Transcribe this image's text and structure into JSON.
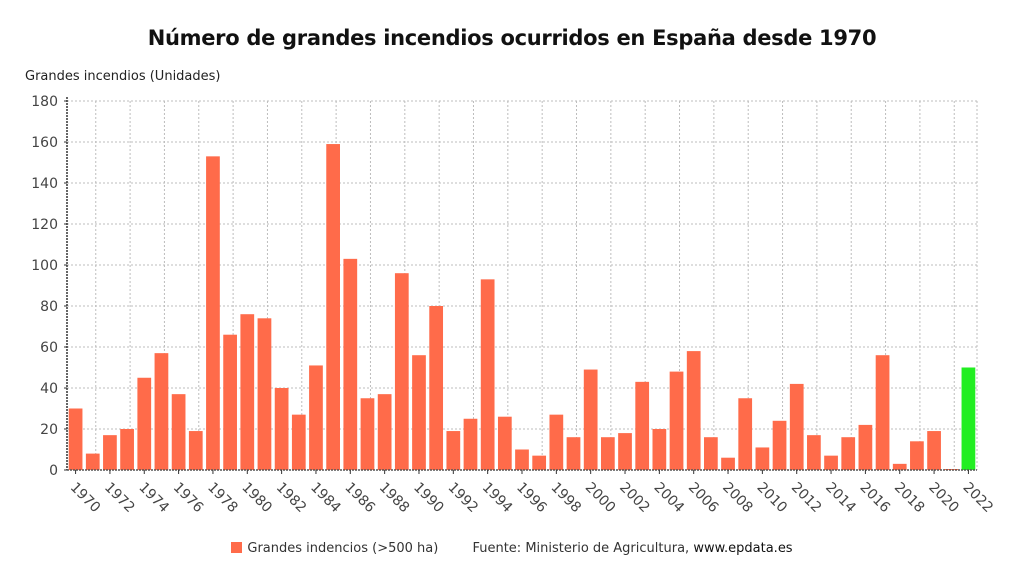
{
  "chart_data": {
    "type": "bar",
    "title": "Número de grandes incendios ocurridos en España desde 1970",
    "ylabel": "Grandes incendios (Unidades)",
    "xlabel": "",
    "ylim": [
      0,
      180
    ],
    "yticks": [
      0,
      20,
      40,
      60,
      80,
      100,
      120,
      140,
      160,
      180
    ],
    "xtick_labels": [
      "1970",
      "1972",
      "1974",
      "1976",
      "1978",
      "1980",
      "1982",
      "1984",
      "1986",
      "1988",
      "1990",
      "1992",
      "1994",
      "1996",
      "1998",
      "2000",
      "2002",
      "2004",
      "2006",
      "2008",
      "2010",
      "2012",
      "2014",
      "2016",
      "2018",
      "2020",
      "2022"
    ],
    "grid": true,
    "categories": [
      "1970",
      "1971",
      "1972",
      "1973",
      "1974",
      "1975",
      "1976",
      "1977",
      "1978",
      "1979",
      "1980",
      "1981",
      "1982",
      "1983",
      "1984",
      "1985",
      "1986",
      "1987",
      "1988",
      "1989",
      "1990",
      "1991",
      "1992",
      "1993",
      "1994",
      "1995",
      "1996",
      "1997",
      "1998",
      "1999",
      "2000",
      "2001",
      "2002",
      "2003",
      "2004",
      "2005",
      "2006",
      "2007",
      "2008",
      "2009",
      "2010",
      "2011",
      "2012",
      "2013",
      "2014",
      "2015",
      "2016",
      "2017",
      "2018",
      "2019",
      "2020",
      "2021",
      "2022"
    ],
    "series": [
      {
        "name": "Grandes indencios (>500 ha)",
        "color": "#ff6b4a",
        "values": [
          30,
          8,
          17,
          20,
          45,
          57,
          37,
          19,
          153,
          66,
          76,
          74,
          40,
          27,
          51,
          159,
          103,
          35,
          37,
          96,
          56,
          80,
          19,
          25,
          93,
          26,
          10,
          7,
          27,
          16,
          49,
          16,
          18,
          43,
          20,
          48,
          58,
          16,
          6,
          35,
          11,
          24,
          42,
          17,
          7,
          16,
          22,
          56,
          3,
          14,
          19,
          0,
          50
        ]
      }
    ],
    "highlight": {
      "category": "2022",
      "color": "#22ee22"
    },
    "legend": {
      "placement": "bottom-center",
      "label": "Grandes indencios (>500 ha)"
    },
    "source": {
      "text": "Fuente: Ministerio de Agricultura,",
      "site": "www.epdata.es"
    }
  }
}
